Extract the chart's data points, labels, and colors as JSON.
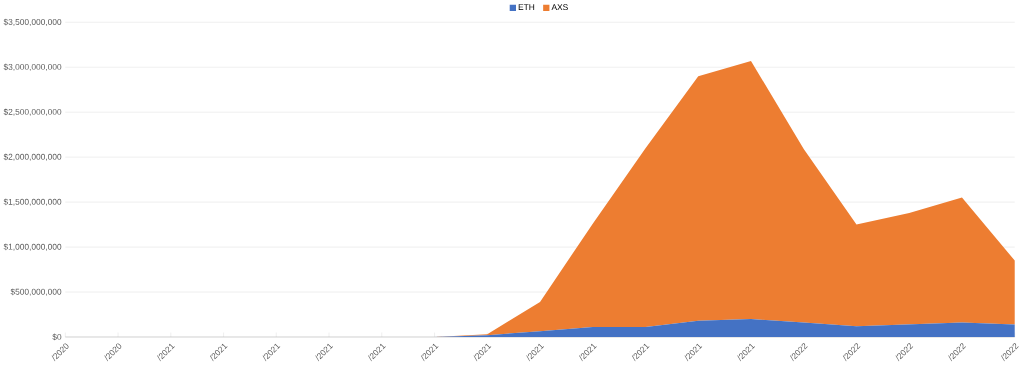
{
  "chart_data": {
    "type": "area",
    "stacked": true,
    "categories": [
      "/2020",
      "/2020",
      "/2021",
      "/2021",
      "/2021",
      "/2021",
      "/2021",
      "/2021",
      "/2021",
      "/2021",
      "/2021",
      "/2021",
      "/2021",
      "/2021",
      "/2022",
      "/2022",
      "/2022",
      "/2022",
      "/2022"
    ],
    "series": [
      {
        "name": "ETH",
        "color": "#4472c4",
        "values": [
          0,
          0,
          0,
          0,
          0,
          0,
          0,
          0,
          20000000,
          65000000,
          110000000,
          110000000,
          180000000,
          200000000,
          160000000,
          120000000,
          140000000,
          160000000,
          140000000
        ]
      },
      {
        "name": "AXS",
        "color": "#ed7d31",
        "values": [
          0,
          0,
          0,
          0,
          0,
          0,
          0,
          0,
          10000000,
          325000000,
          1150000000,
          1990000000,
          2720000000,
          2870000000,
          1930000000,
          1130000000,
          1240000000,
          1390000000,
          710000000
        ]
      }
    ],
    "ylim": [
      0,
      3500000000
    ],
    "yticks": [
      {
        "value": 0,
        "label": "$0"
      },
      {
        "value": 500000000,
        "label": "$500,000,000"
      },
      {
        "value": 1000000000,
        "label": "$1,000,000,000"
      },
      {
        "value": 1500000000,
        "label": "$1,500,000,000"
      },
      {
        "value": 2000000000,
        "label": "$2,000,000,000"
      },
      {
        "value": 2500000000,
        "label": "$2,500,000,000"
      },
      {
        "value": 3000000000,
        "label": "$3,000,000,000"
      },
      {
        "value": 3500000000,
        "label": "$3,500,000,000"
      }
    ],
    "grid": "y",
    "legend": "top"
  }
}
